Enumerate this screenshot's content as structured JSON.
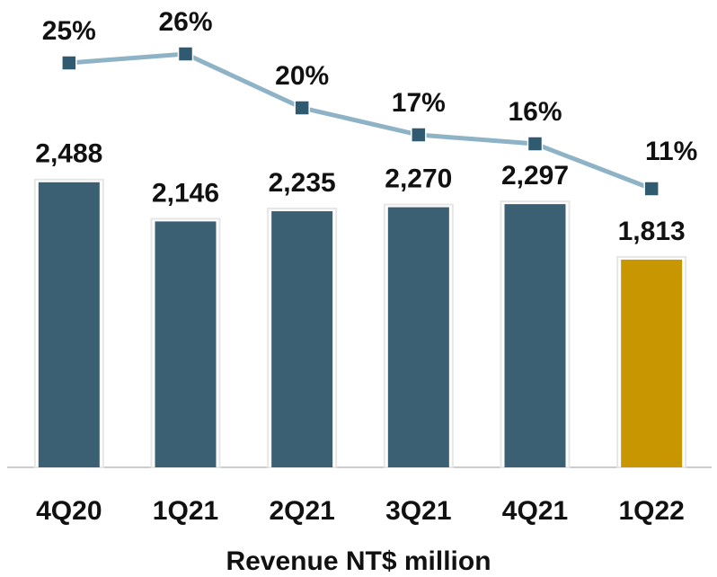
{
  "chart_data": {
    "type": "bar_line",
    "title": "Revenue NT$ million",
    "categories": [
      "4Q20",
      "1Q21",
      "2Q21",
      "3Q21",
      "4Q21",
      "1Q22"
    ],
    "series": [
      {
        "name": "Revenue",
        "type": "bar",
        "colors": [
          "#3b5f73",
          "#3b5f73",
          "#3b5f73",
          "#3b5f73",
          "#3b5f73",
          "#c89600"
        ],
        "values": [
          2488,
          2146,
          2235,
          2270,
          2297,
          1813
        ],
        "value_labels": [
          "2,488",
          "2,146",
          "2,235",
          "2,270",
          "2,297",
          "1,813"
        ]
      },
      {
        "type": "line",
        "axis": "y2",
        "color": "#8fb3c6",
        "marker_color": "#2f5a70",
        "values": [
          25,
          26,
          20,
          17,
          16,
          11
        ],
        "value_labels": [
          "25%",
          "26%",
          "20%",
          "17%",
          "16%",
          "11%"
        ]
      }
    ],
    "ylim": [
      0,
      4000
    ],
    "y2lim": [
      -20,
      31
    ]
  }
}
